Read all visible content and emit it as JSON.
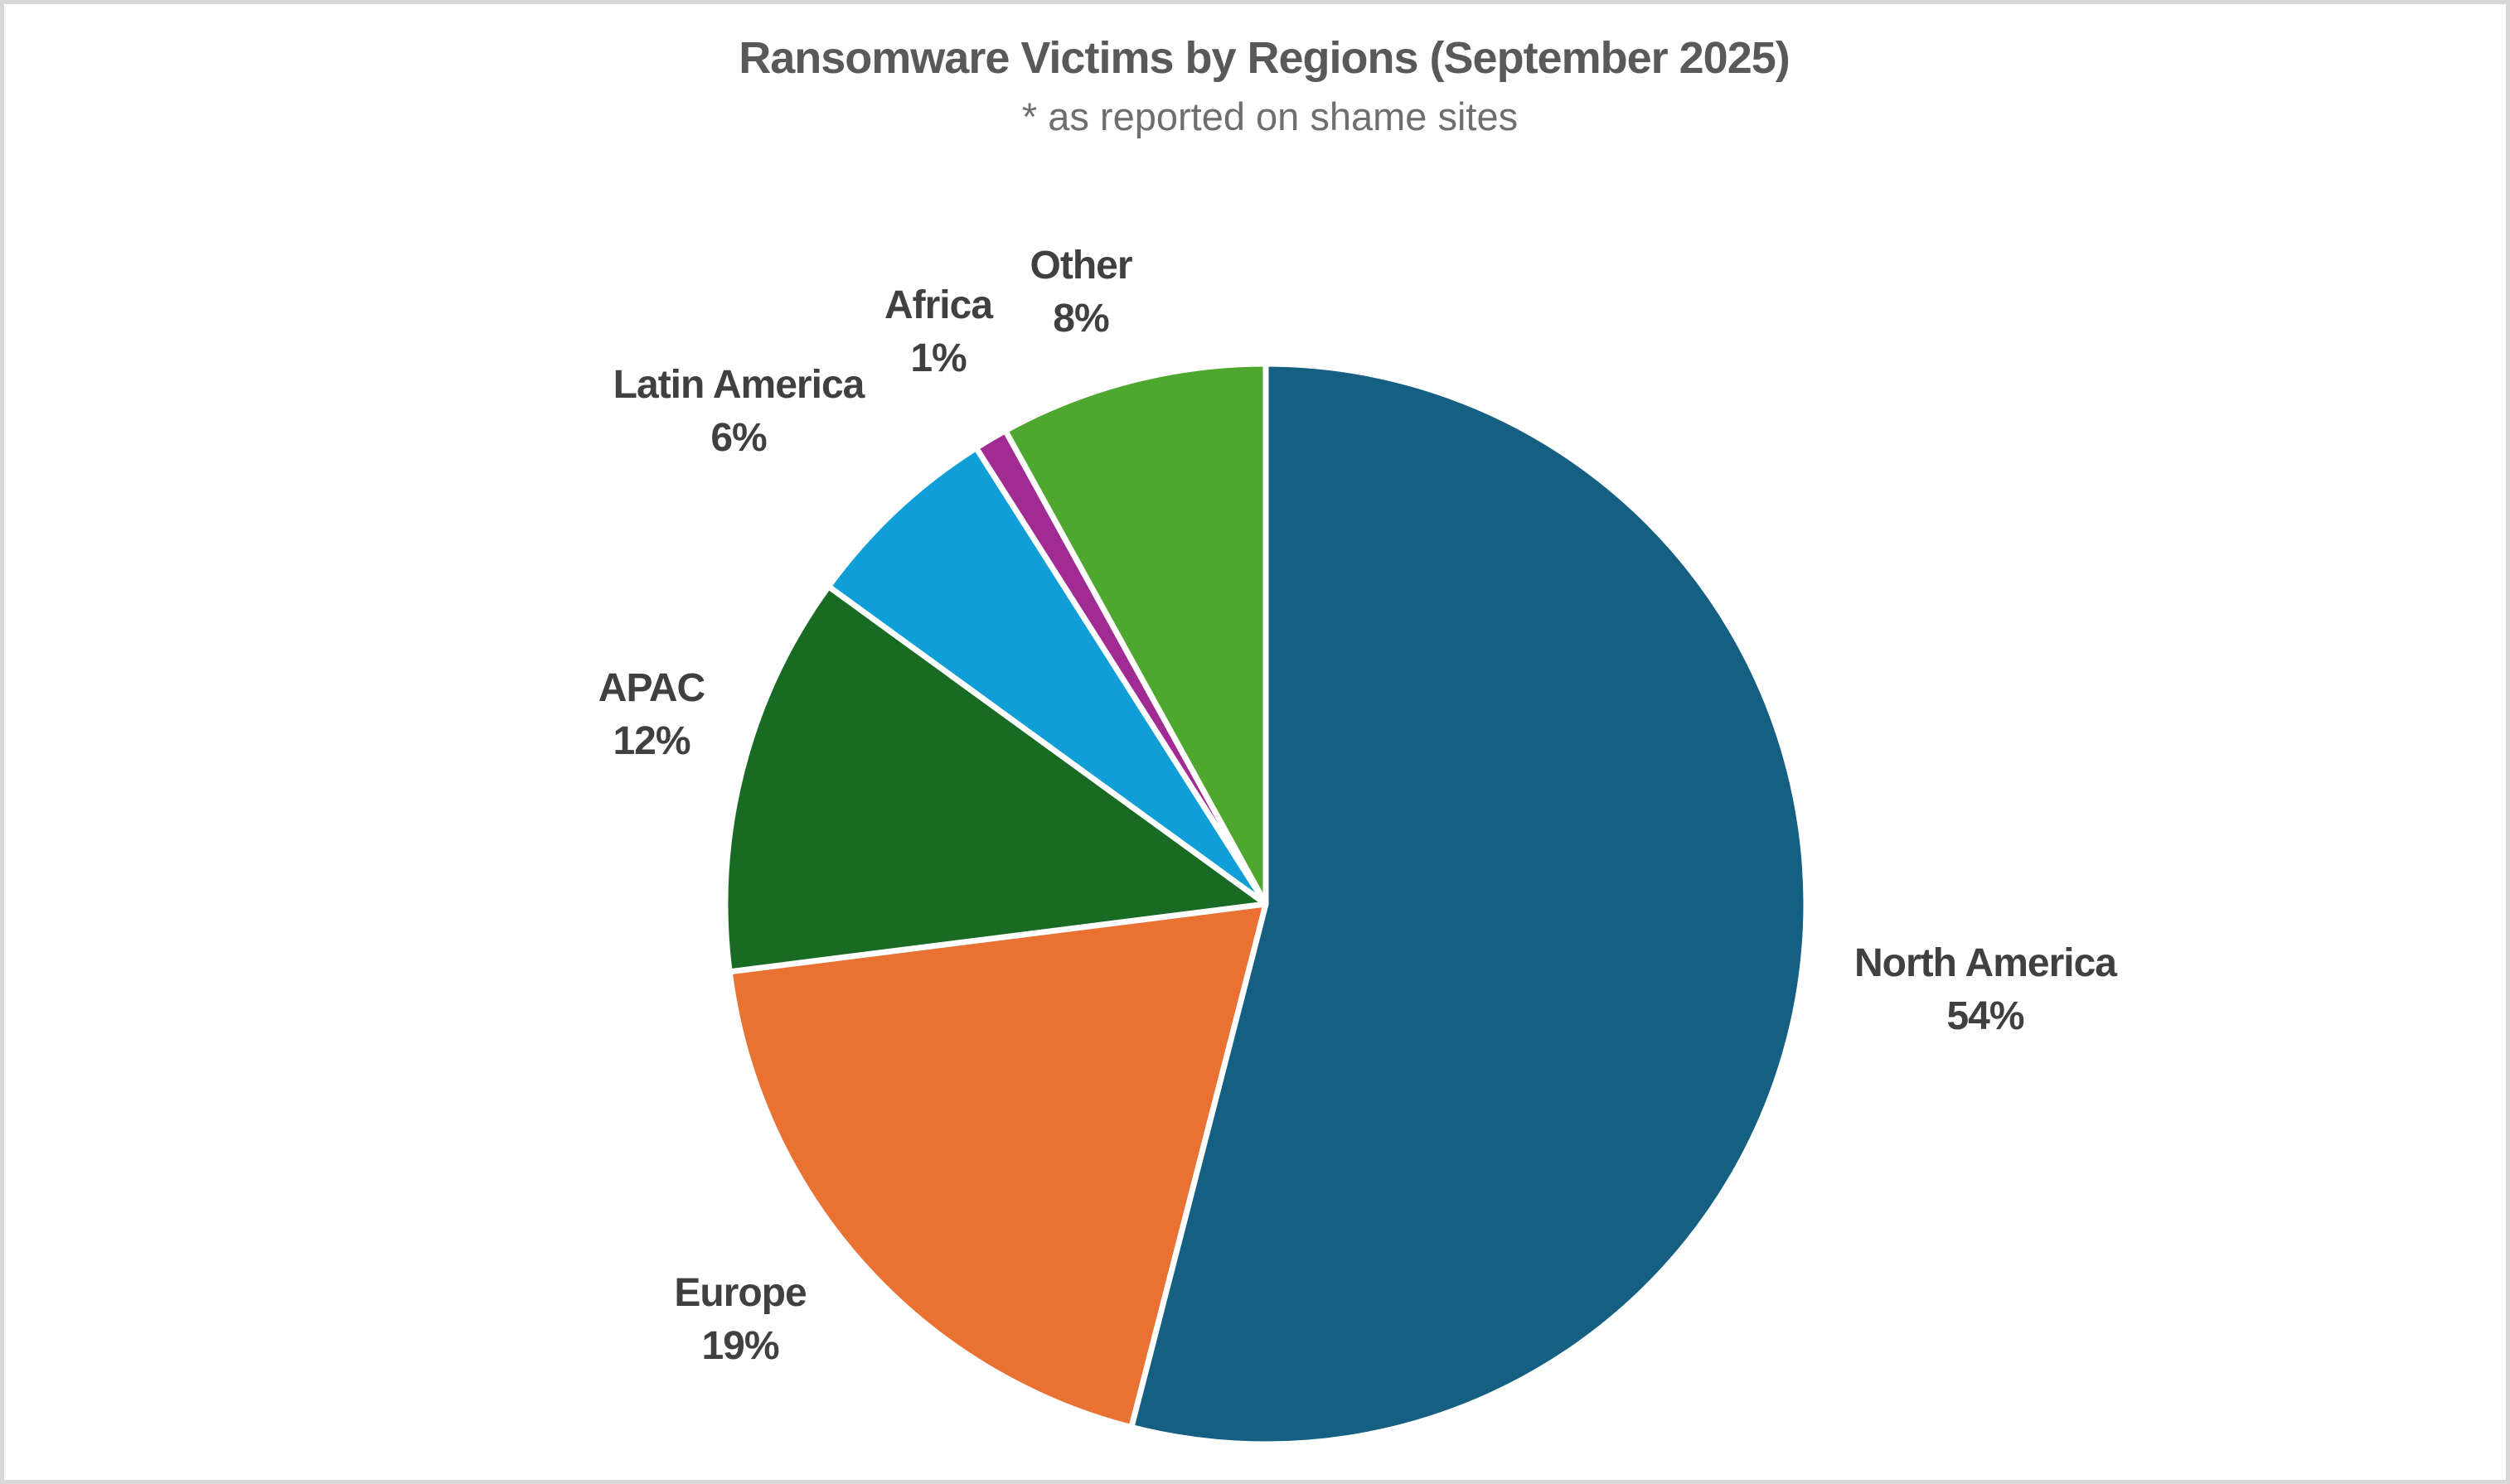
{
  "frame": {
    "background_color": "#ffffff",
    "border_color": "#d7d7d7"
  },
  "text_colors": {
    "title": "#595959",
    "subtitle": "#6e6e6e",
    "labels": "#404040"
  },
  "chart_data": {
    "type": "pie",
    "title": "Ransomware Victims by Regions (September 2025)",
    "subtitle": "* as reported on shame sites",
    "unit": "%",
    "legend": "none",
    "labels_position": "outside-end",
    "start_angle_deg": 0,
    "direction": "clockwise",
    "slice_border_color": "#ffffff",
    "pie": {
      "cx": 1522,
      "cy": 1086,
      "r": 652
    },
    "categories": [
      "North America",
      "Europe",
      "APAC",
      "Latin America",
      "Africa",
      "Other"
    ],
    "values": [
      54,
      19,
      12,
      6,
      1,
      8
    ],
    "series": [
      {
        "label": "North America",
        "pct": 54,
        "color": "#156082",
        "label_x": 2390,
        "label_y": 1190
      },
      {
        "label": "Europe",
        "pct": 19,
        "color": "#E97132",
        "label_x": 888,
        "label_y": 1588
      },
      {
        "label": "APAC",
        "pct": 12,
        "color": "#196B24",
        "label_x": 781,
        "label_y": 858
      },
      {
        "label": "Latin America",
        "pct": 6,
        "color": "#0F9ED5",
        "label_x": 886,
        "label_y": 492
      },
      {
        "label": "Africa",
        "pct": 1,
        "color": "#A02B93",
        "label_x": 1127,
        "label_y": 396
      },
      {
        "label": "Other",
        "pct": 8,
        "color": "#4EA72E",
        "label_x": 1299,
        "label_y": 348
      }
    ]
  }
}
